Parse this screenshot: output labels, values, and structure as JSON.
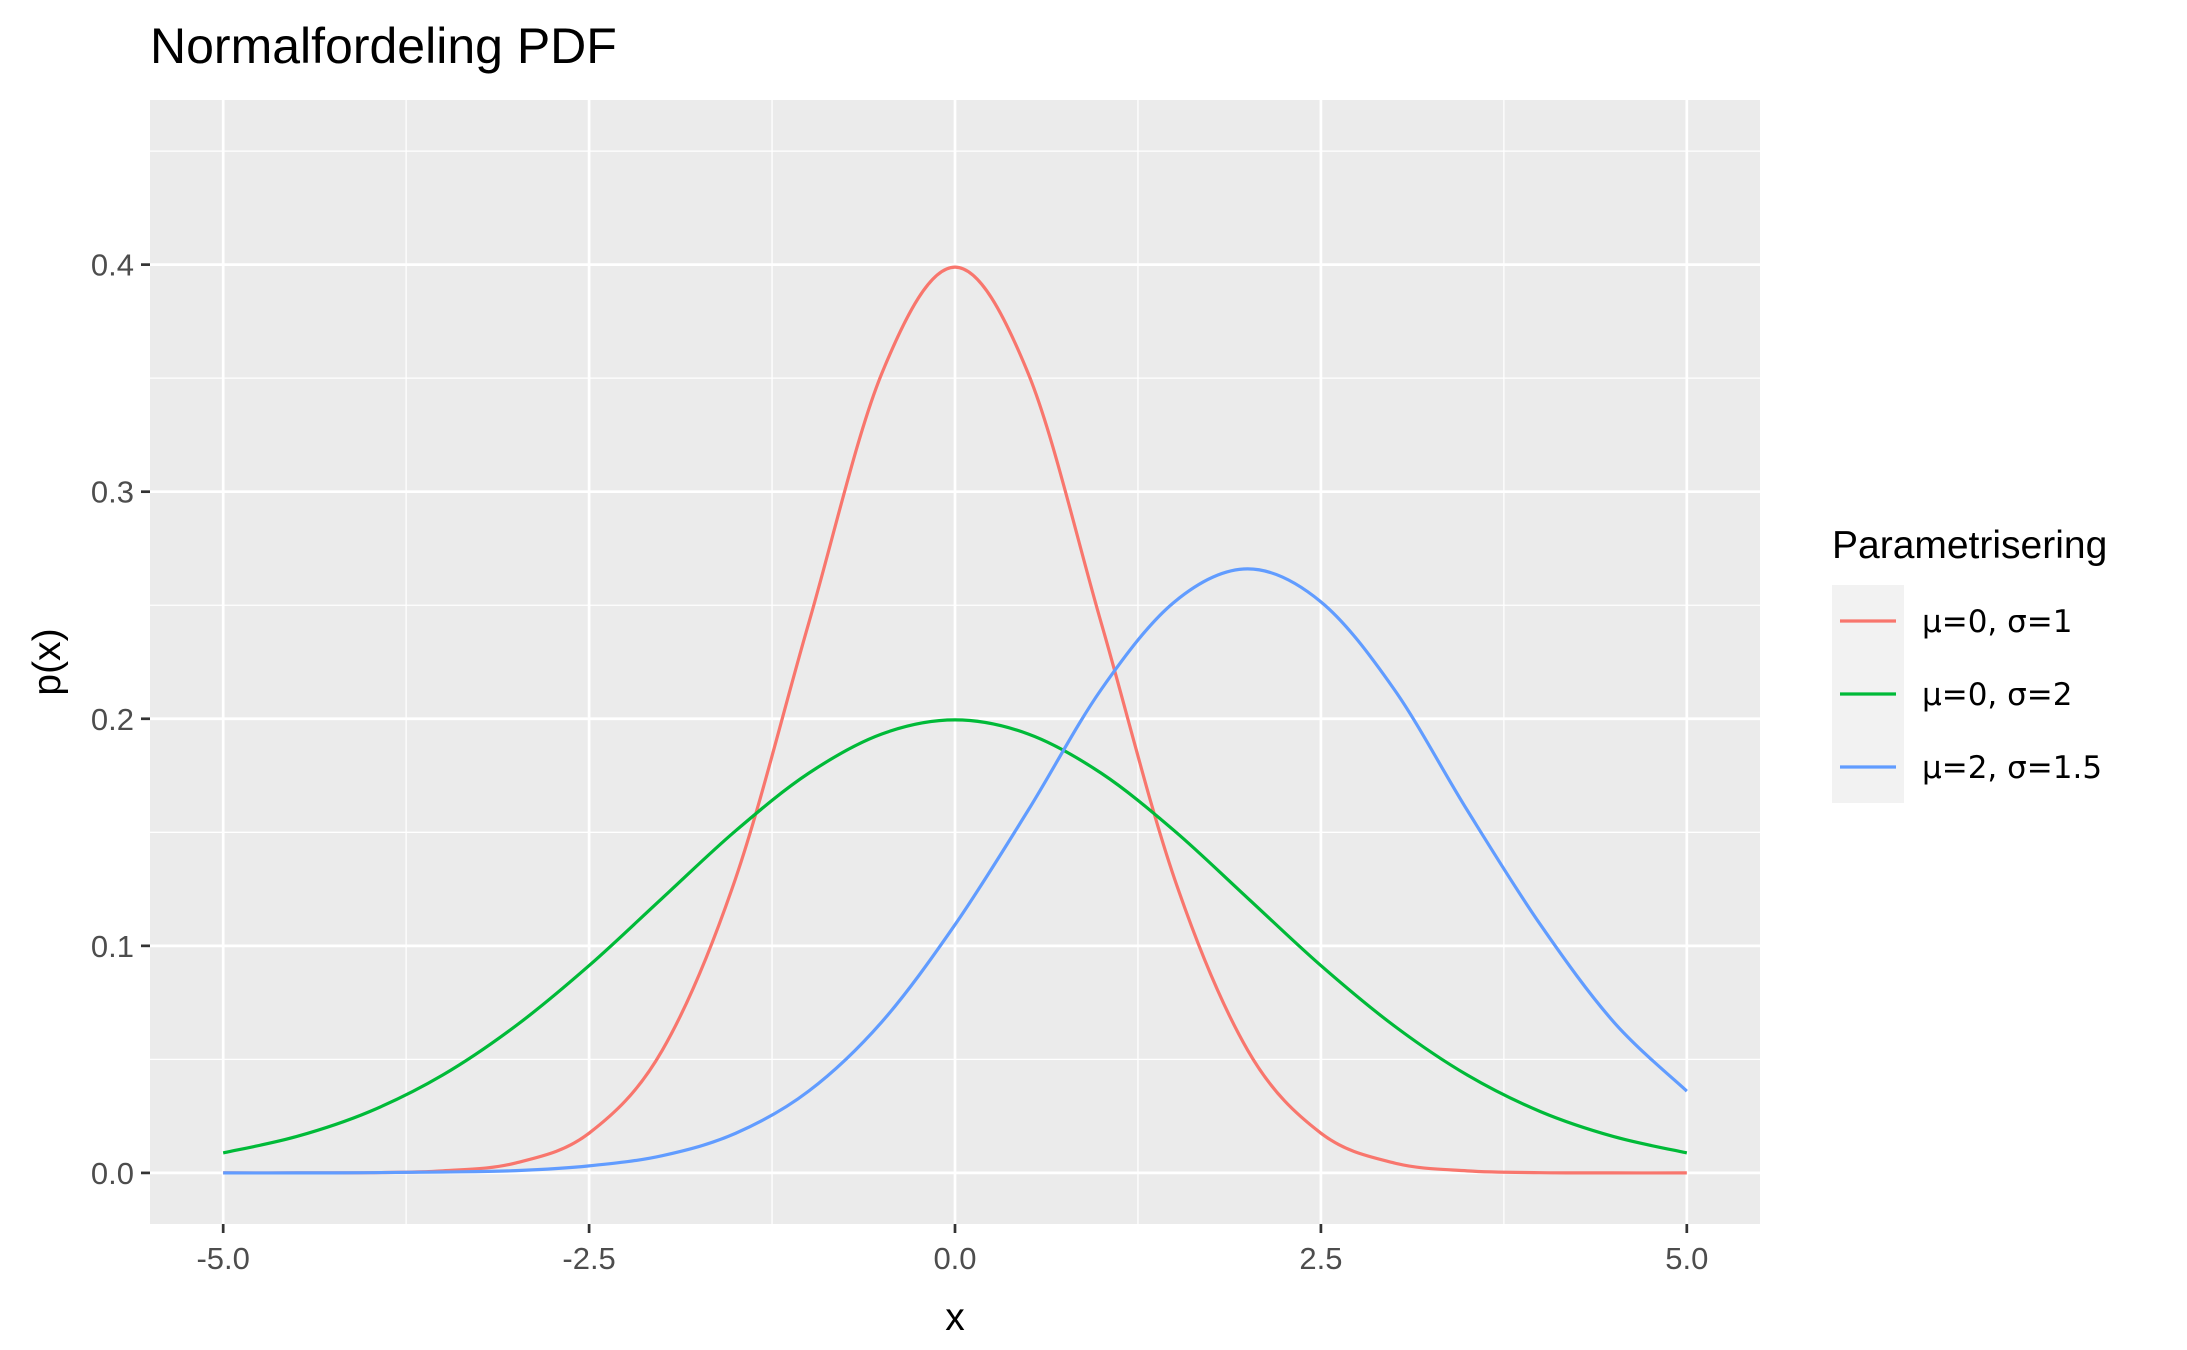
{
  "chart_data": {
    "type": "line",
    "title": "Normalfordeling PDF",
    "xlabel": "x",
    "ylabel": "p(x)",
    "xlim": [
      -5.5,
      5.5
    ],
    "ylim": [
      -0.0225,
      0.4725
    ],
    "x_ticks": [
      -5,
      -2.5,
      0,
      2.5,
      5
    ],
    "x_tick_labels": [
      "-5.0",
      "-2.5",
      "0.0",
      "2.5",
      "5.0"
    ],
    "y_ticks": [
      0,
      0.1,
      0.2,
      0.3,
      0.4
    ],
    "y_tick_labels": [
      "0.0",
      "0.1",
      "0.2",
      "0.3",
      "0.4"
    ],
    "grid": true,
    "legend": {
      "title": "Parametrisering",
      "position": "right"
    },
    "x": [
      -5,
      -4.5,
      -4,
      -3.5,
      -3,
      -2.5,
      -2,
      -1.5,
      -1,
      -0.5,
      0,
      0.5,
      1,
      1.5,
      2,
      2.5,
      3,
      3.5,
      4,
      4.5,
      5
    ],
    "series": [
      {
        "name": "μ=0, σ=1",
        "color": "#F8766D",
        "values": [
          0.0,
          0.0,
          0.0001,
          0.0009,
          0.0044,
          0.0175,
          0.054,
          0.1295,
          0.242,
          0.3521,
          0.3989,
          0.3521,
          0.242,
          0.1295,
          0.054,
          0.0175,
          0.0044,
          0.0009,
          0.0001,
          0.0,
          0.0
        ]
      },
      {
        "name": "μ=0, σ=2",
        "color": "#00BA38",
        "values": [
          0.0088,
          0.016,
          0.027,
          0.0431,
          0.0648,
          0.0913,
          0.121,
          0.1506,
          0.176,
          0.1933,
          0.1995,
          0.1933,
          0.176,
          0.1506,
          0.121,
          0.0913,
          0.0648,
          0.0431,
          0.027,
          0.016,
          0.0088
        ]
      },
      {
        "name": "μ=2, σ=1.5",
        "color": "#619CFF",
        "values": [
          0.0,
          0.0,
          0.0001,
          0.0004,
          0.001,
          0.0031,
          0.0076,
          0.0174,
          0.036,
          0.0665,
          0.1093,
          0.1597,
          0.213,
          0.2515,
          0.266,
          0.2515,
          0.213,
          0.1597,
          0.1093,
          0.0665,
          0.036
        ]
      }
    ]
  }
}
